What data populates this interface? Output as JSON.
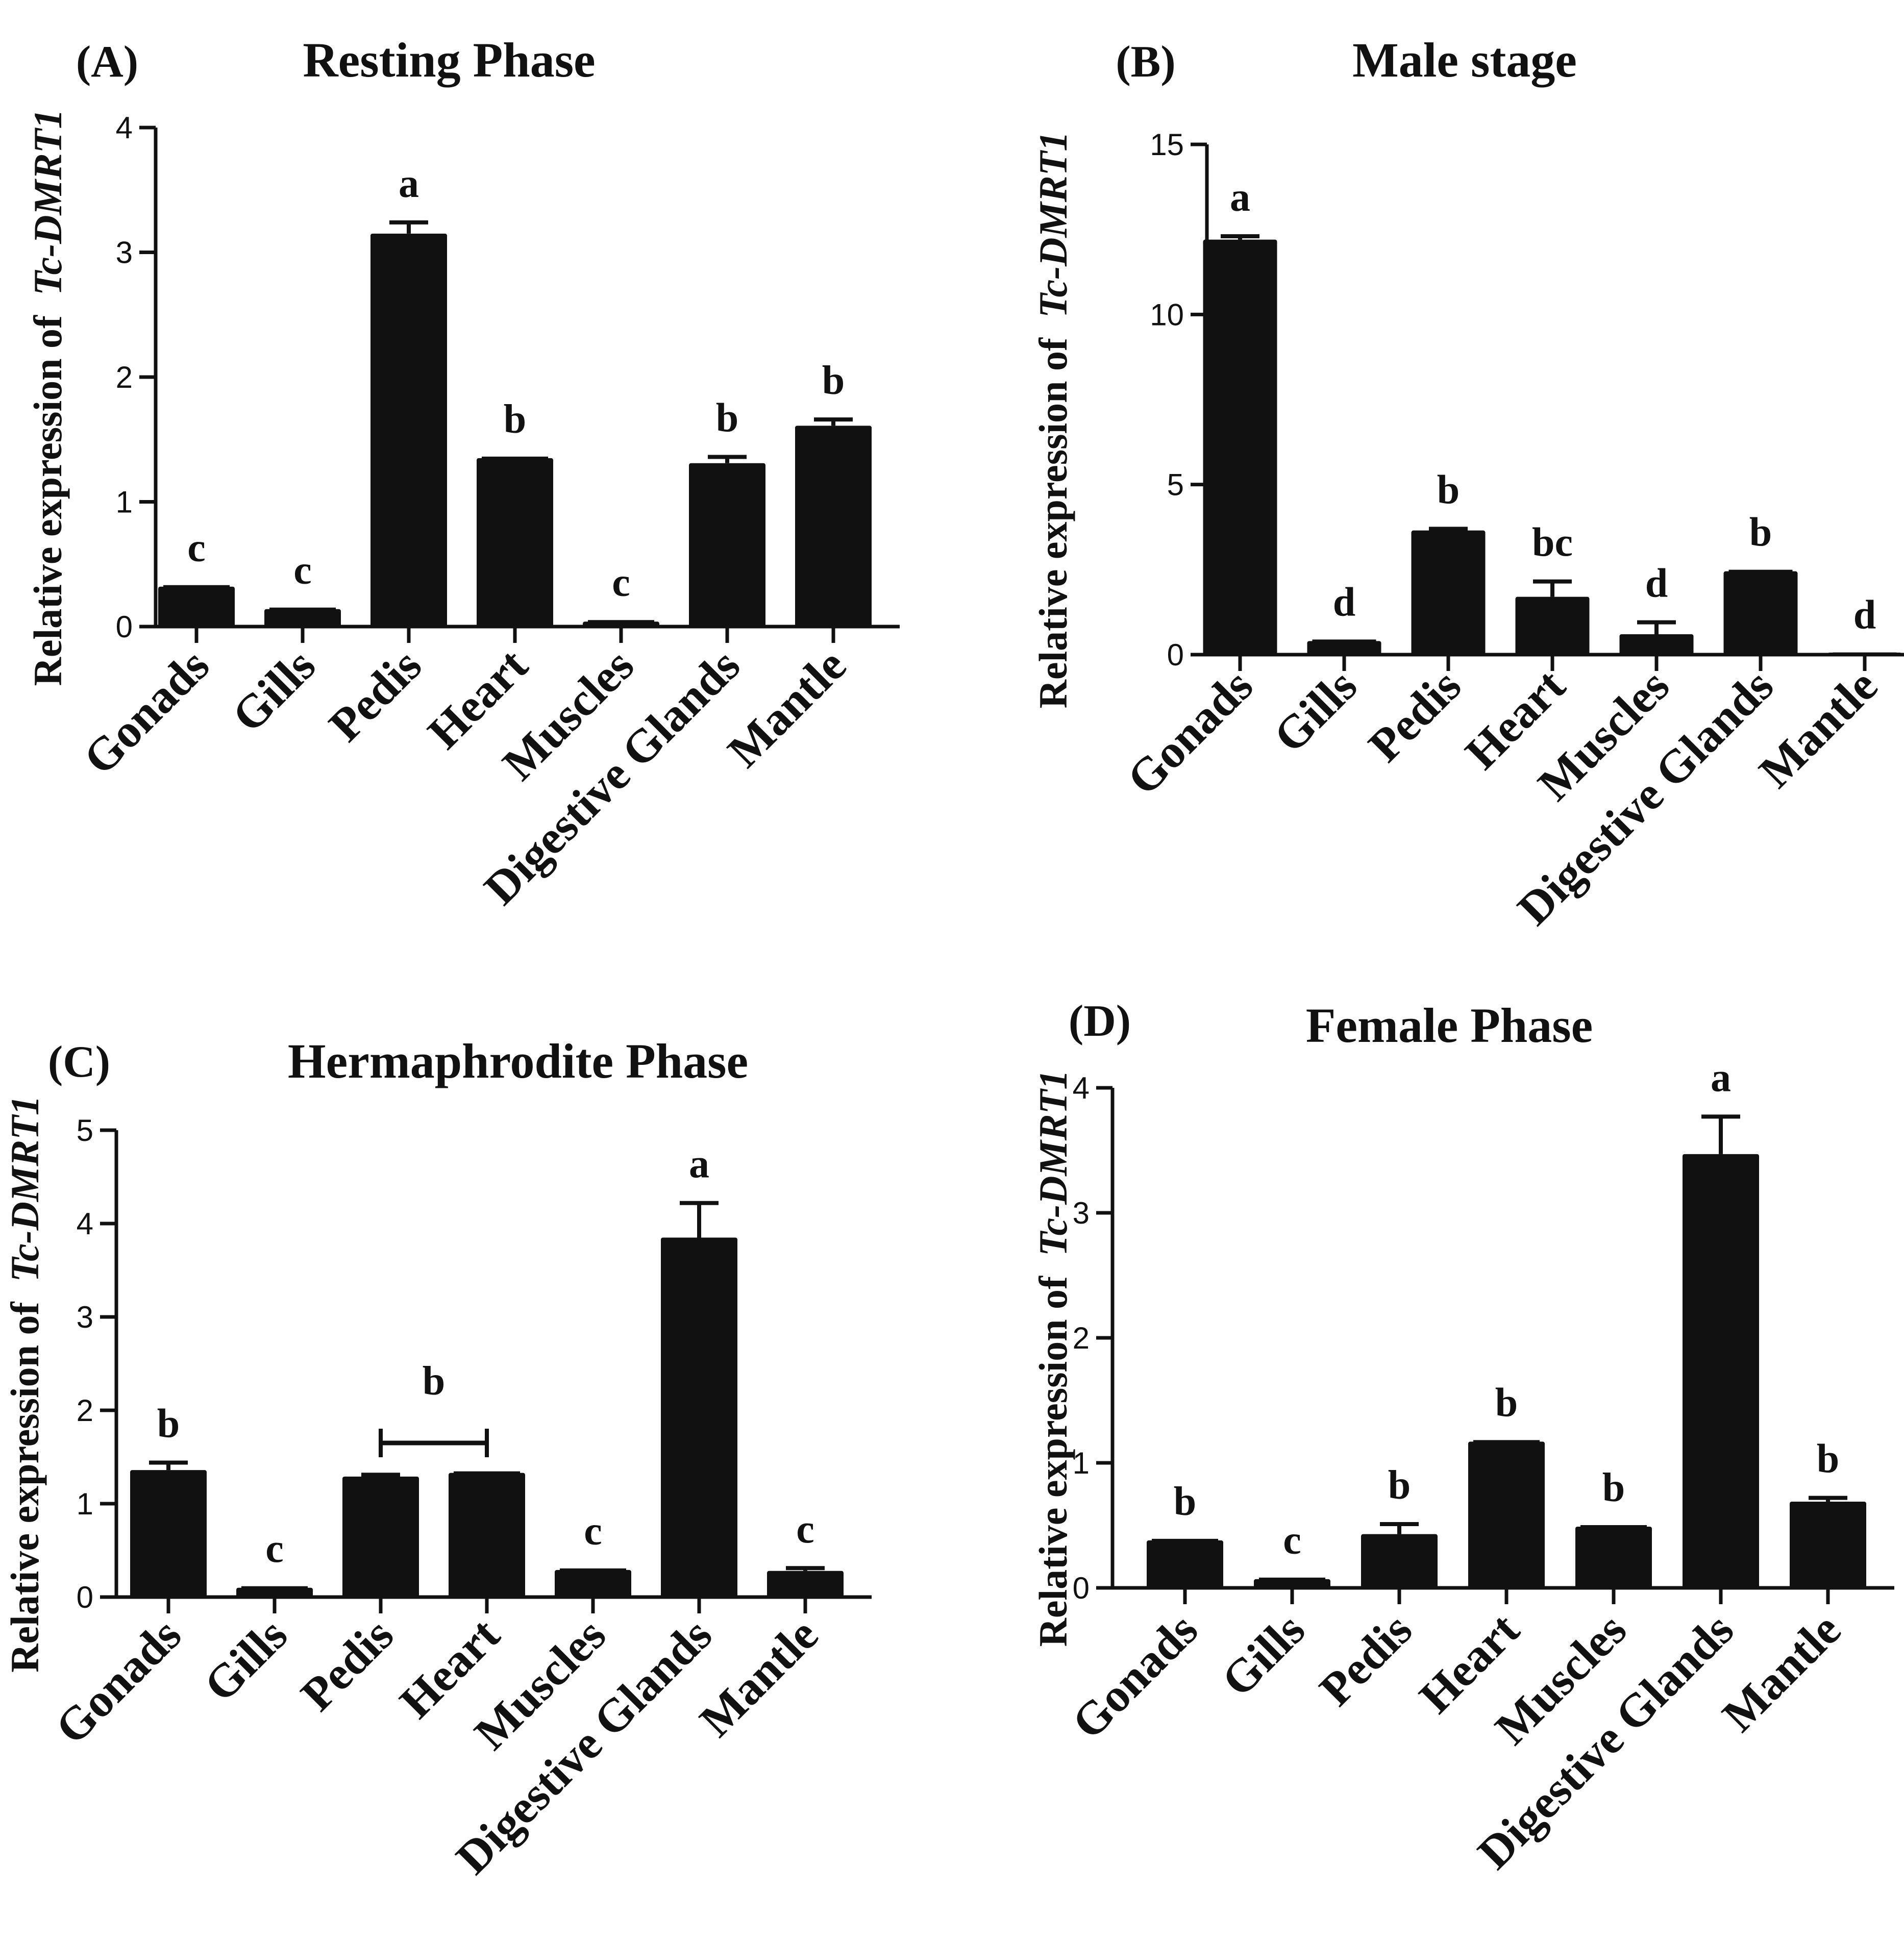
{
  "chart_data": [
    {
      "panel": "A",
      "panel_label": "(A)",
      "type": "bar",
      "title": "Resting Phase",
      "ylabel_prefix": "Relative expression of",
      "ylabel_gene": "Tc-DMRT1",
      "categories": [
        "Gonads",
        "Gills",
        "Pedis",
        "Heart",
        "Muscles",
        "Digestive Glands",
        "Mantle"
      ],
      "values": [
        0.32,
        0.14,
        3.15,
        1.35,
        0.04,
        1.31,
        1.61
      ],
      "errors": [
        0.0,
        0.0,
        0.09,
        0.0,
        0.0,
        0.05,
        0.05
      ],
      "significance": [
        "c",
        "c",
        "a",
        "b",
        "c",
        "b",
        "b"
      ],
      "ylim": [
        0,
        4
      ],
      "yticks": [
        "0",
        "1",
        "2",
        "3",
        "4"
      ],
      "bar_color": "#111111",
      "brackets": []
    },
    {
      "panel": "B",
      "panel_label": "(B)",
      "type": "bar",
      "title": "Male stage",
      "ylabel_prefix": "Relative expression of",
      "ylabel_gene": "Tc-DMRT1",
      "categories": [
        "Gonads",
        "Gills",
        "Pedis",
        "Heart",
        "Muscles",
        "Digestive Glands",
        "Mantle"
      ],
      "values": [
        12.2,
        0.4,
        3.65,
        1.7,
        0.6,
        2.45,
        0.02
      ],
      "errors": [
        0.1,
        0.0,
        0.05,
        0.45,
        0.35,
        0.0,
        0.0
      ],
      "significance": [
        "a",
        "d",
        "b",
        "bc",
        "d",
        "b",
        "d"
      ],
      "ylim": [
        0,
        15
      ],
      "yticks": [
        "0",
        "5",
        "10",
        "15"
      ],
      "bar_color": "#111111",
      "brackets": []
    },
    {
      "panel": "C",
      "panel_label": "(C)",
      "type": "bar",
      "title": "Hermaphrodite Phase",
      "ylabel_prefix": "Relative expression of",
      "ylabel_gene": "Tc-DMRT1",
      "categories": [
        "Gonads",
        "Gills",
        "Pedis",
        "Heart",
        "Muscles",
        "Digestive Glands",
        "Mantle"
      ],
      "values": [
        1.36,
        0.1,
        1.29,
        1.33,
        0.29,
        3.85,
        0.28
      ],
      "errors": [
        0.08,
        0.0,
        0.02,
        0.0,
        0.0,
        0.37,
        0.03
      ],
      "significance": [
        "b",
        "c",
        "",
        "",
        "c",
        "a",
        "c"
      ],
      "ylim": [
        0,
        5
      ],
      "yticks": [
        "0",
        "1",
        "2",
        "3",
        "4",
        "5"
      ],
      "bar_color": "#111111",
      "brackets": [
        {
          "from": 2,
          "to": 3,
          "level": 1.65,
          "label": "b"
        }
      ]
    },
    {
      "panel": "D",
      "panel_label": "(D)",
      "type": "bar",
      "title": "Female Phase",
      "ylabel_prefix": "Relative expression of",
      "ylabel_gene": "Tc-DMRT1",
      "categories": [
        "Gonads",
        "Gills",
        "Pedis",
        "Heart",
        "Muscles",
        "Digestive Glands",
        "Mantle"
      ],
      "values": [
        0.38,
        0.07,
        0.43,
        1.17,
        0.49,
        3.47,
        0.69
      ],
      "errors": [
        0.0,
        0.0,
        0.08,
        0.0,
        0.0,
        0.3,
        0.03
      ],
      "significance": [
        "b",
        "c",
        "b",
        "b",
        "b",
        "a",
        "b"
      ],
      "ylim": [
        0,
        4
      ],
      "yticks": [
        "0",
        "1",
        "2",
        "3",
        "4"
      ],
      "bar_color": "#111111",
      "brackets": []
    }
  ]
}
